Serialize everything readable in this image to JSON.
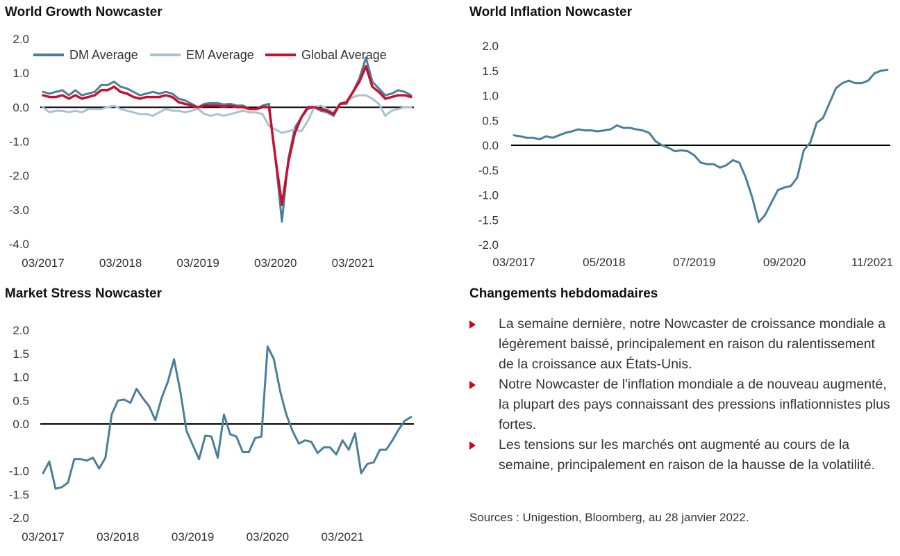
{
  "colors": {
    "dm": "#4a7f9a",
    "em": "#a9c2cf",
    "global": "#c8102e",
    "single": "#4a7f9a",
    "zero_line": "#000000",
    "bullet": "#d0021b"
  },
  "chart_data": [
    {
      "id": "growth",
      "type": "line",
      "title": "World Growth Nowcaster",
      "ylim": [
        -4.0,
        2.0
      ],
      "yticks": [
        "2.0",
        "1.0",
        "0.0",
        "-1.0",
        "-2.0",
        "-3.0",
        "-4.0"
      ],
      "ytick_values": [
        2,
        1,
        0,
        -1,
        -2,
        -3,
        -4
      ],
      "xtick_labels": [
        "03/2017",
        "03/2018",
        "03/2019",
        "03/2020",
        "03/2021"
      ],
      "xtick_index": [
        0,
        12,
        24,
        36,
        48
      ],
      "legend": "top",
      "series": [
        {
          "name": "DM Average",
          "color_key": "dm",
          "values": [
            0.45,
            0.4,
            0.45,
            0.5,
            0.35,
            0.5,
            0.35,
            0.4,
            0.45,
            0.65,
            0.65,
            0.75,
            0.6,
            0.55,
            0.45,
            0.35,
            0.4,
            0.45,
            0.4,
            0.45,
            0.4,
            0.25,
            0.2,
            0.1,
            0.0,
            0.1,
            0.12,
            0.12,
            0.08,
            0.1,
            0.05,
            0.05,
            -0.05,
            -0.05,
            0.05,
            0.1,
            -1.5,
            -3.35,
            -1.5,
            -0.6,
            -0.3,
            -0.05,
            0.0,
            -0.1,
            -0.15,
            -0.25,
            0.1,
            0.1,
            0.45,
            0.85,
            1.45,
            0.75,
            0.55,
            0.35,
            0.4,
            0.5,
            0.45,
            0.35
          ]
        },
        {
          "name": "EM Average",
          "color_key": "em",
          "values": [
            0.0,
            -0.15,
            -0.1,
            -0.1,
            -0.15,
            -0.1,
            -0.15,
            -0.05,
            -0.05,
            -0.05,
            0.0,
            0.05,
            -0.05,
            -0.1,
            -0.15,
            -0.2,
            -0.2,
            -0.25,
            -0.15,
            -0.05,
            -0.1,
            -0.1,
            -0.15,
            -0.1,
            -0.05,
            -0.2,
            -0.25,
            -0.2,
            -0.25,
            -0.2,
            -0.15,
            -0.1,
            -0.15,
            -0.15,
            -0.2,
            -0.55,
            -0.65,
            -0.75,
            -0.7,
            -0.65,
            -0.7,
            -0.4,
            0.0,
            0.05,
            -0.05,
            -0.15,
            0.1,
            0.15,
            0.3,
            0.35,
            0.35,
            0.25,
            0.1,
            -0.25,
            -0.1,
            -0.05,
            0.0,
            0.0
          ]
        },
        {
          "name": "Global Average",
          "color_key": "global",
          "values": [
            0.35,
            0.3,
            0.3,
            0.35,
            0.25,
            0.35,
            0.25,
            0.3,
            0.35,
            0.5,
            0.5,
            0.6,
            0.45,
            0.4,
            0.3,
            0.25,
            0.3,
            0.3,
            0.3,
            0.35,
            0.3,
            0.15,
            0.1,
            0.05,
            0.0,
            0.05,
            0.05,
            0.05,
            0.02,
            0.05,
            0.0,
            0.0,
            -0.05,
            -0.05,
            0.0,
            0.0,
            -1.5,
            -2.85,
            -1.6,
            -0.75,
            -0.3,
            0.0,
            0.0,
            -0.05,
            -0.1,
            -0.2,
            0.1,
            0.15,
            0.45,
            0.75,
            1.2,
            0.6,
            0.45,
            0.25,
            0.3,
            0.35,
            0.35,
            0.3
          ]
        }
      ]
    },
    {
      "id": "inflation",
      "type": "line",
      "title": "World Inflation Nowcaster",
      "ylim": [
        -2.0,
        2.0
      ],
      "yticks": [
        "2.0",
        "1.5",
        "1.0",
        "0.5",
        "0.0",
        "-0.5",
        "-1.0",
        "-1.5",
        "-2.0"
      ],
      "ytick_values": [
        2,
        1.5,
        1,
        0.5,
        0,
        -0.5,
        -1,
        -1.5,
        -2
      ],
      "xtick_labels": [
        "03/2017",
        "05/2018",
        "07/2019",
        "09/2020",
        "11/2021"
      ],
      "xtick_index": [
        0,
        14,
        28,
        42,
        56
      ],
      "series": [
        {
          "name": "",
          "color_key": "single",
          "values": [
            0.2,
            0.18,
            0.15,
            0.15,
            0.12,
            0.18,
            0.15,
            0.2,
            0.25,
            0.28,
            0.32,
            0.3,
            0.3,
            0.28,
            0.3,
            0.32,
            0.4,
            0.35,
            0.35,
            0.32,
            0.3,
            0.25,
            0.08,
            0.0,
            -0.05,
            -0.12,
            -0.1,
            -0.12,
            -0.2,
            -0.35,
            -0.38,
            -0.38,
            -0.45,
            -0.4,
            -0.3,
            -0.35,
            -0.65,
            -1.05,
            -1.55,
            -1.4,
            -1.15,
            -0.9,
            -0.85,
            -0.82,
            -0.65,
            -0.1,
            0.05,
            0.45,
            0.55,
            0.85,
            1.15,
            1.25,
            1.3,
            1.25,
            1.25,
            1.3,
            1.45,
            1.5,
            1.52
          ]
        }
      ]
    },
    {
      "id": "stress",
      "type": "line",
      "title": "Market Stress Nowcaster",
      "ylim": [
        -2.0,
        2.0
      ],
      "yticks": [
        "2.0",
        "1.5",
        "1.0",
        "0.5",
        "0.0",
        "-1.0",
        "-1.5",
        "-2.0"
      ],
      "ytick_values": [
        2,
        1.5,
        1,
        0.5,
        0,
        -1,
        -1.5,
        -2
      ],
      "xtick_labels": [
        "03/2017",
        "03/2018",
        "03/2019",
        "03/2020",
        "03/2021"
      ],
      "xtick_index": [
        0,
        12,
        24,
        36,
        48
      ],
      "series": [
        {
          "name": "",
          "color_key": "single",
          "values": [
            -1.05,
            -0.8,
            -1.38,
            -1.35,
            -1.25,
            -0.75,
            -0.75,
            -0.78,
            -0.72,
            -0.95,
            -0.72,
            0.2,
            0.5,
            0.52,
            0.45,
            0.75,
            0.55,
            0.38,
            0.08,
            0.55,
            0.9,
            1.38,
            0.7,
            -0.15,
            -0.45,
            -0.75,
            -0.25,
            -0.27,
            -0.72,
            0.2,
            -0.22,
            -0.27,
            -0.6,
            -0.6,
            -0.3,
            -0.27,
            1.65,
            1.38,
            0.7,
            0.2,
            -0.15,
            -0.42,
            -0.35,
            -0.38,
            -0.62,
            -0.5,
            -0.5,
            -0.65,
            -0.35,
            -0.55,
            -0.2,
            -1.05,
            -0.85,
            -0.82,
            -0.55,
            -0.55,
            -0.35,
            -0.12,
            0.07,
            0.15
          ]
        }
      ]
    }
  ],
  "text_panel": {
    "title": "Changements hebdomadaires",
    "bullets": [
      "La semaine dernière, notre Nowcaster de croissance mondiale a légèrement baissé, principalement en raison du ralentissement de la croissance aux États-Unis.",
      "Notre Nowcaster de l'inflation mondiale a de nouveau augmenté, la plupart des pays connaissant des pressions inflationnistes plus fortes.",
      "Les tensions sur les marchés ont augmenté au cours de la semaine, principalement en raison de la hausse de la volatilité."
    ],
    "sources": "Sources : Unigestion, Bloomberg, au 28 janvier 2022."
  }
}
